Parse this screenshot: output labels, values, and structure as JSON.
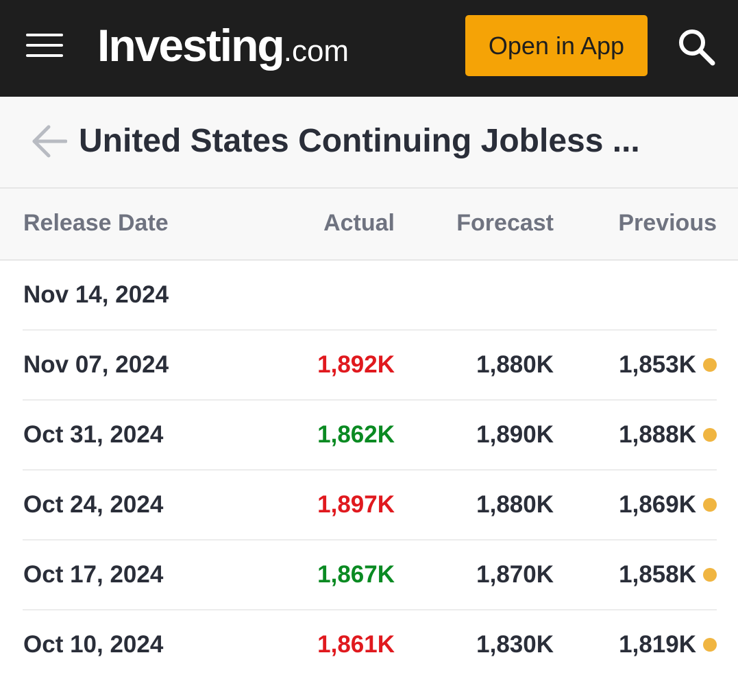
{
  "header": {
    "logo_brand": "Investing",
    "logo_tld": ".com",
    "open_app_label": "Open in App",
    "menu_icon": "hamburger-icon",
    "search_icon": "search-icon",
    "background_color": "#1e1e1e",
    "button_color": "#f5a306"
  },
  "title_bar": {
    "title": "United States Continuing Jobless ...",
    "back_icon": "arrow-left-icon"
  },
  "table": {
    "columns": {
      "date": "Release Date",
      "actual": "Actual",
      "forecast": "Forecast",
      "previous": "Previous"
    },
    "rows": [
      {
        "date": "Nov 14, 2024",
        "actual": "",
        "actual_status": "none",
        "forecast": "",
        "previous": "",
        "previous_dot": false
      },
      {
        "date": "Nov 07, 2024",
        "actual": "1,892K",
        "actual_status": "negative",
        "forecast": "1,880K",
        "previous": "1,853K",
        "previous_dot": true
      },
      {
        "date": "Oct 31, 2024",
        "actual": "1,862K",
        "actual_status": "positive",
        "forecast": "1,890K",
        "previous": "1,888K",
        "previous_dot": true
      },
      {
        "date": "Oct 24, 2024",
        "actual": "1,897K",
        "actual_status": "negative",
        "forecast": "1,880K",
        "previous": "1,869K",
        "previous_dot": true
      },
      {
        "date": "Oct 17, 2024",
        "actual": "1,867K",
        "actual_status": "positive",
        "forecast": "1,870K",
        "previous": "1,858K",
        "previous_dot": true
      },
      {
        "date": "Oct 10, 2024",
        "actual": "1,861K",
        "actual_status": "negative",
        "forecast": "1,830K",
        "previous": "1,819K",
        "previous_dot": true
      }
    ]
  },
  "colors": {
    "negative": "#e0191e",
    "positive": "#0a8a22",
    "revision_dot": "#f0b541"
  }
}
